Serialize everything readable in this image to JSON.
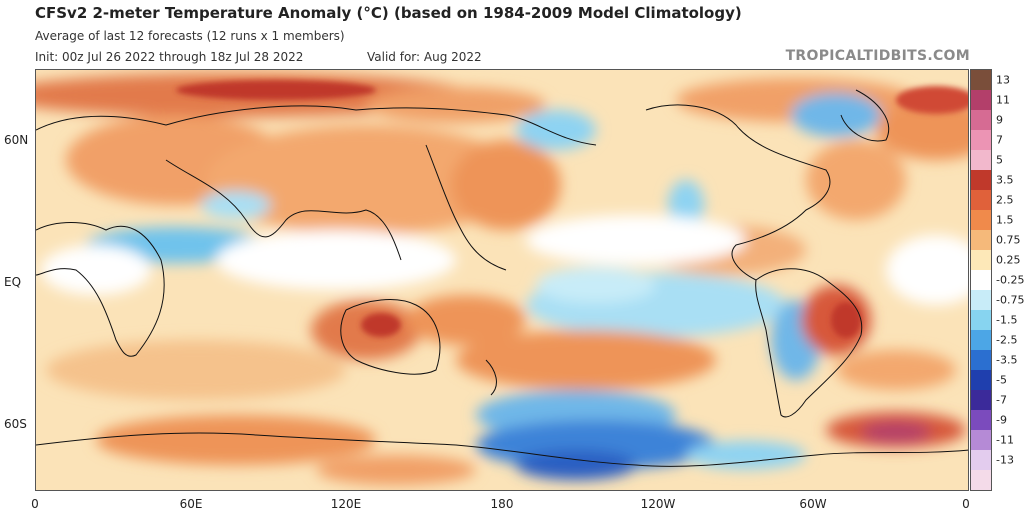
{
  "header": {
    "title": "CFSv2 2-meter Temperature Anomaly (°C) (based on 1984-2009 Model Climatology)",
    "subtitle": "Average of last 12 forecasts (12 runs x 1 members)",
    "init": "Init: 00z Jul 26 2022 through 18z Jul 28 2022",
    "valid": "Valid for: Aug 2022",
    "watermark": "TROPICALTIDBITS.COM"
  },
  "map": {
    "y_axis_labels": [
      "60N",
      "EQ",
      "60S"
    ],
    "x_axis_labels": [
      "0",
      "60E",
      "120E",
      "180",
      "120W",
      "60W",
      "0"
    ]
  },
  "colorbar": {
    "labels": [
      "13",
      "11",
      "9",
      "7",
      "5",
      "3.5",
      "2.5",
      "1.5",
      "0.75",
      "0.25",
      "-0.25",
      "-0.75",
      "-1.5",
      "-2.5",
      "-3.5",
      "-5",
      "-7",
      "-9",
      "-11",
      "-13"
    ],
    "colors": [
      "#7a4e3a",
      "#b33f6a",
      "#d66b93",
      "#ec94b4",
      "#f2b8cc",
      "#c0392b",
      "#e0613a",
      "#f08a4b",
      "#f5b97a",
      "#fde8b8",
      "#ffffff",
      "#c8ecf8",
      "#87d4f0",
      "#4ca6e6",
      "#2b6fd0",
      "#1f3fae",
      "#3b2a9a",
      "#7b4bbd",
      "#b58ad6",
      "#e3ccee",
      "#f4dbe9"
    ]
  }
}
